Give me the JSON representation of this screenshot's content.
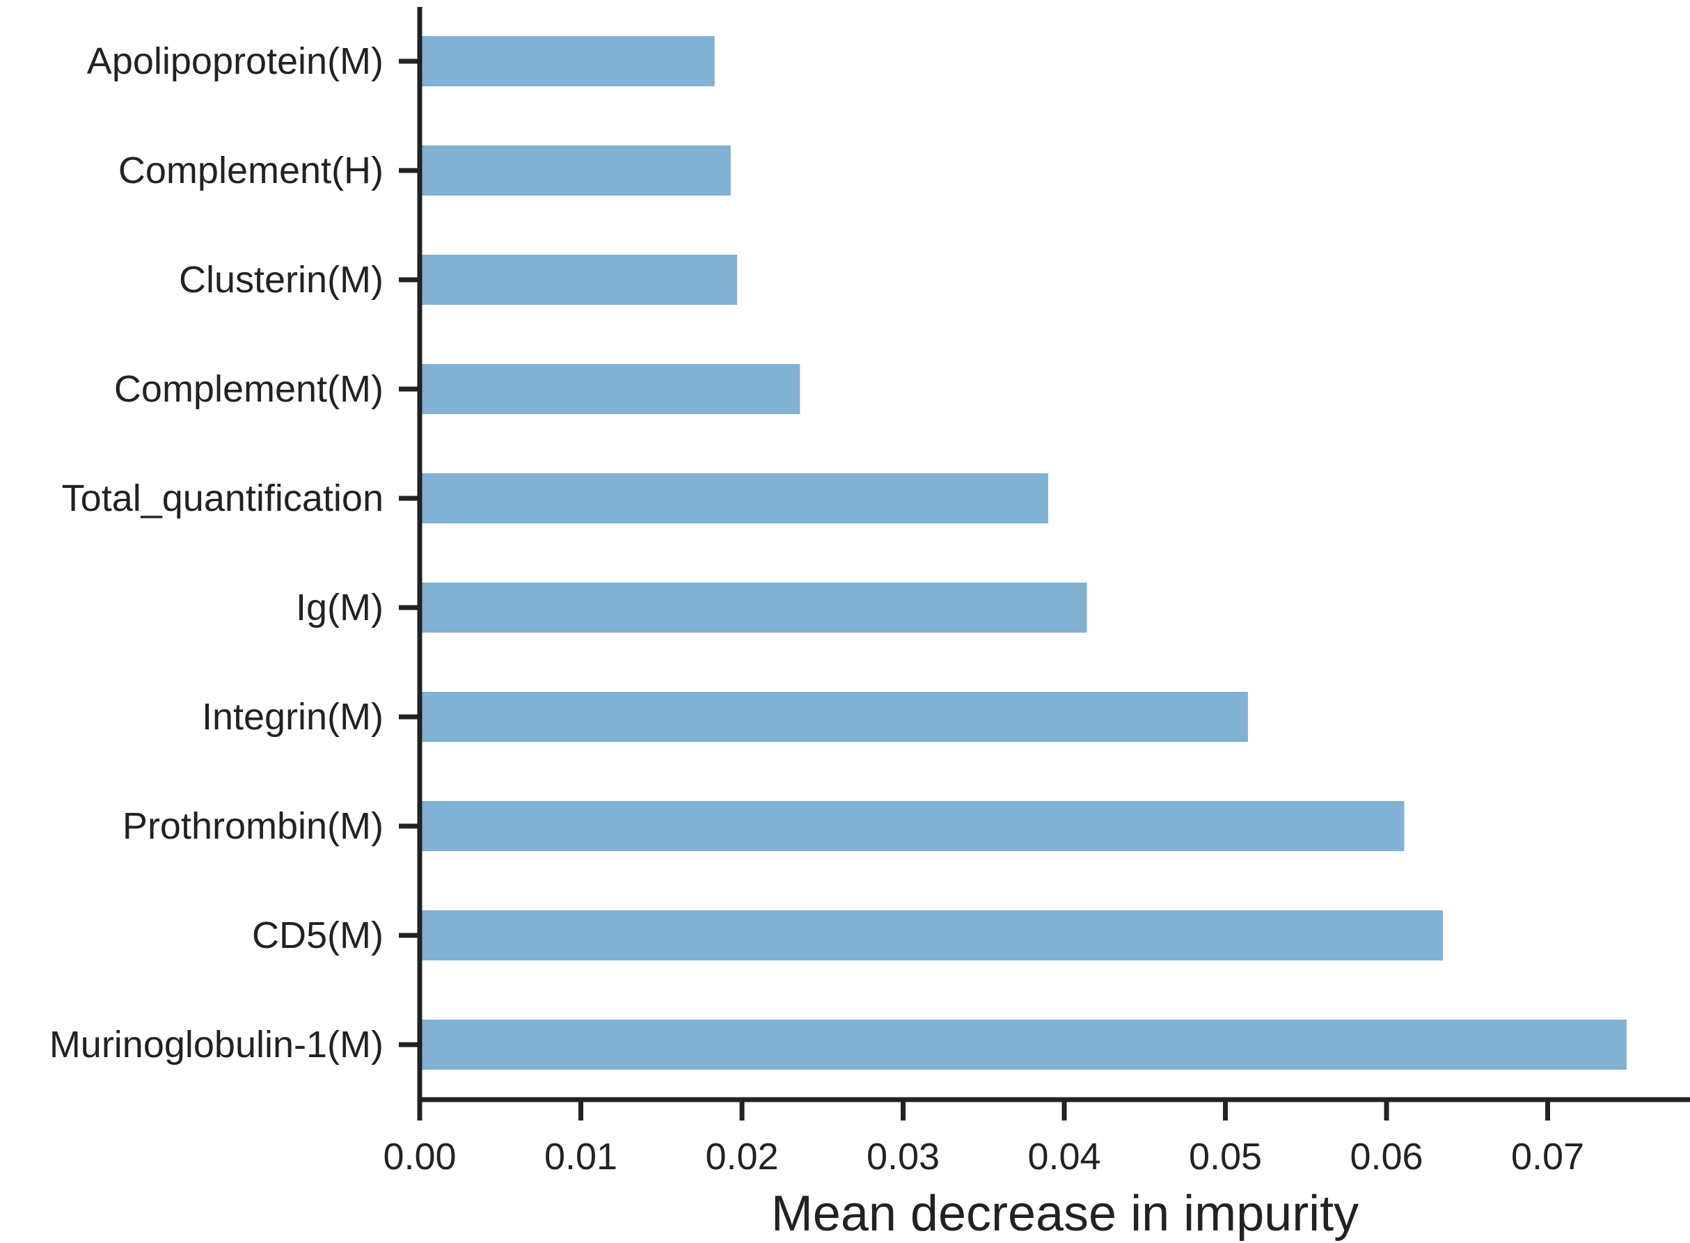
{
  "chart_data": {
    "type": "bar",
    "orientation": "horizontal",
    "categories": [
      "Apolipoprotein(M)",
      "Complement(H)",
      "Clusterin(M)",
      "Complement(M)",
      "Total_quantification",
      "Ig(M)",
      "Integrin(M)",
      "Prothrombin(M)",
      "CD5(M)",
      "Murinoglobulin-1(M)"
    ],
    "values": [
      0.0183,
      0.0193,
      0.0197,
      0.0236,
      0.039,
      0.0414,
      0.0514,
      0.0611,
      0.0635,
      0.0749
    ],
    "title": "",
    "xlabel": "Mean decrease in impurity",
    "ylabel": "",
    "xlim": [
      0,
      0.079
    ],
    "xticks": [
      "0.00",
      "0.01",
      "0.02",
      "0.03",
      "0.04",
      "0.05",
      "0.06",
      "0.07"
    ],
    "grid": false,
    "legend": "none",
    "bar_color": "#81b1d3",
    "axis_color": "#222222"
  }
}
